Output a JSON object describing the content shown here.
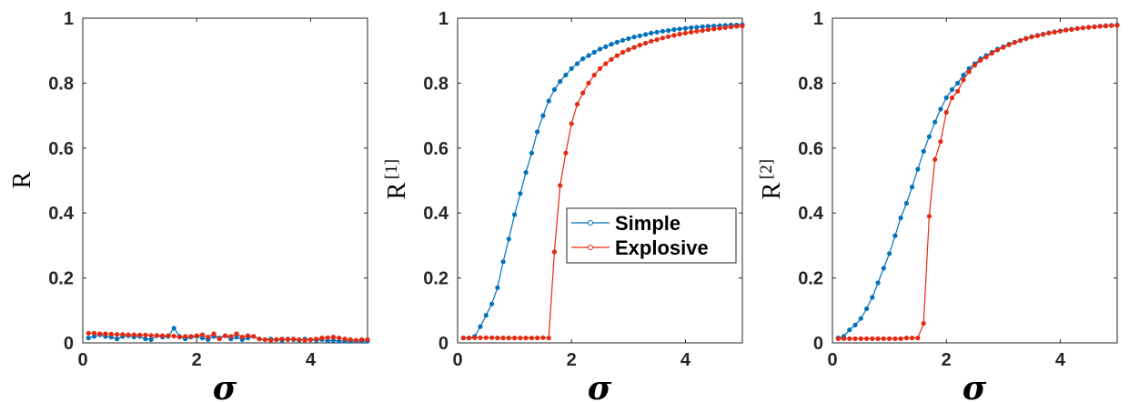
{
  "colors": {
    "simple": "#0072BD",
    "explosive": "#E62A12"
  },
  "legend": {
    "items": [
      "Simple",
      "Explosive"
    ],
    "panel": 1,
    "position": "center-right"
  },
  "chart_data": [
    {
      "type": "line",
      "ylabel": "R",
      "ylabel_sup": "",
      "xlabel": "σ",
      "xlim": [
        0,
        5
      ],
      "ylim": [
        0,
        1
      ],
      "xticks": [
        "0",
        "2",
        "4"
      ],
      "yticks": [
        "0",
        "0.2",
        "0.4",
        "0.6",
        "0.8",
        "1"
      ],
      "x": [
        0.1,
        0.2,
        0.3,
        0.4,
        0.5,
        0.6,
        0.7,
        0.8,
        0.9,
        1.0,
        1.1,
        1.2,
        1.3,
        1.4,
        1.5,
        1.6,
        1.7,
        1.8,
        1.9,
        2.0,
        2.1,
        2.2,
        2.3,
        2.4,
        2.5,
        2.6,
        2.7,
        2.8,
        2.9,
        3.0,
        3.1,
        3.2,
        3.3,
        3.4,
        3.5,
        3.6,
        3.7,
        3.8,
        3.9,
        4.0,
        4.1,
        4.2,
        4.3,
        4.4,
        4.5,
        4.6,
        4.7,
        4.8,
        4.9,
        5.0
      ],
      "series": [
        {
          "name": "Simple",
          "values": [
            0.015,
            0.02,
            0.025,
            0.02,
            0.018,
            0.012,
            0.02,
            0.022,
            0.018,
            0.02,
            0.012,
            0.01,
            0.022,
            0.018,
            0.02,
            0.045,
            0.02,
            0.012,
            0.018,
            0.02,
            0.015,
            0.01,
            0.02,
            0.015,
            0.022,
            0.012,
            0.018,
            0.01,
            0.015,
            0.02,
            0.012,
            0.01,
            0.012,
            0.01,
            0.008,
            0.012,
            0.01,
            0.008,
            0.012,
            0.01,
            0.008,
            0.01,
            0.006,
            0.008,
            0.005,
            0.006,
            0.005,
            0.006,
            0.005,
            0.005
          ]
        },
        {
          "name": "Explosive",
          "values": [
            0.03,
            0.03,
            0.028,
            0.028,
            0.027,
            0.026,
            0.026,
            0.025,
            0.025,
            0.024,
            0.024,
            0.023,
            0.023,
            0.022,
            0.022,
            0.021,
            0.018,
            0.02,
            0.02,
            0.022,
            0.025,
            0.018,
            0.028,
            0.012,
            0.022,
            0.02,
            0.028,
            0.018,
            0.022,
            0.02,
            0.012,
            0.01,
            0.008,
            0.01,
            0.012,
            0.01,
            0.012,
            0.01,
            0.008,
            0.01,
            0.012,
            0.015,
            0.016,
            0.018,
            0.015,
            0.012,
            0.01,
            0.008,
            0.01,
            0.01
          ]
        }
      ]
    },
    {
      "type": "line",
      "ylabel": "R",
      "ylabel_sup": "[1]",
      "xlabel": "σ",
      "xlim": [
        0,
        5
      ],
      "ylim": [
        0,
        1
      ],
      "xticks": [
        "0",
        "2",
        "4"
      ],
      "yticks": [
        "0",
        "0.2",
        "0.4",
        "0.6",
        "0.8",
        "1"
      ],
      "x": [
        0.1,
        0.2,
        0.3,
        0.4,
        0.5,
        0.6,
        0.7,
        0.8,
        0.9,
        1.0,
        1.1,
        1.2,
        1.3,
        1.4,
        1.5,
        1.6,
        1.7,
        1.8,
        1.9,
        2.0,
        2.1,
        2.2,
        2.3,
        2.4,
        2.5,
        2.6,
        2.7,
        2.8,
        2.9,
        3.0,
        3.1,
        3.2,
        3.3,
        3.4,
        3.5,
        3.6,
        3.7,
        3.8,
        3.9,
        4.0,
        4.1,
        4.2,
        4.3,
        4.4,
        4.5,
        4.6,
        4.7,
        4.8,
        4.9,
        5.0
      ],
      "series": [
        {
          "name": "Simple",
          "values": [
            0.015,
            0.015,
            0.02,
            0.05,
            0.085,
            0.12,
            0.17,
            0.25,
            0.32,
            0.395,
            0.46,
            0.525,
            0.585,
            0.65,
            0.7,
            0.745,
            0.78,
            0.805,
            0.825,
            0.845,
            0.86,
            0.875,
            0.885,
            0.895,
            0.905,
            0.912,
            0.92,
            0.926,
            0.932,
            0.937,
            0.942,
            0.946,
            0.95,
            0.954,
            0.957,
            0.96,
            0.962,
            0.965,
            0.967,
            0.969,
            0.971,
            0.972,
            0.974,
            0.975,
            0.976,
            0.977,
            0.978,
            0.979,
            0.979,
            0.98
          ]
        },
        {
          "name": "Explosive",
          "values": [
            0.015,
            0.015,
            0.016,
            0.016,
            0.016,
            0.016,
            0.015,
            0.015,
            0.015,
            0.015,
            0.015,
            0.015,
            0.015,
            0.015,
            0.016,
            0.015,
            0.28,
            0.485,
            0.585,
            0.675,
            0.735,
            0.77,
            0.8,
            0.825,
            0.845,
            0.86,
            0.873,
            0.885,
            0.895,
            0.903,
            0.91,
            0.917,
            0.923,
            0.929,
            0.934,
            0.939,
            0.943,
            0.947,
            0.951,
            0.954,
            0.957,
            0.96,
            0.962,
            0.965,
            0.967,
            0.969,
            0.971,
            0.973,
            0.975,
            0.976
          ]
        }
      ]
    },
    {
      "type": "line",
      "ylabel": "R",
      "ylabel_sup": "[2]",
      "xlabel": "σ",
      "xlim": [
        0,
        5
      ],
      "ylim": [
        0,
        1
      ],
      "xticks": [
        "0",
        "2",
        "4"
      ],
      "yticks": [
        "0",
        "0.2",
        "0.4",
        "0.6",
        "0.8",
        "1"
      ],
      "x": [
        0.1,
        0.2,
        0.3,
        0.4,
        0.5,
        0.6,
        0.7,
        0.8,
        0.9,
        1.0,
        1.1,
        1.2,
        1.3,
        1.4,
        1.5,
        1.6,
        1.7,
        1.8,
        1.9,
        2.0,
        2.1,
        2.2,
        2.3,
        2.4,
        2.5,
        2.6,
        2.7,
        2.8,
        2.9,
        3.0,
        3.1,
        3.2,
        3.3,
        3.4,
        3.5,
        3.6,
        3.7,
        3.8,
        3.9,
        4.0,
        4.1,
        4.2,
        4.3,
        4.4,
        4.5,
        4.6,
        4.7,
        4.8,
        4.9,
        5.0
      ],
      "series": [
        {
          "name": "Simple",
          "values": [
            0.015,
            0.02,
            0.04,
            0.055,
            0.075,
            0.105,
            0.14,
            0.185,
            0.23,
            0.275,
            0.33,
            0.385,
            0.43,
            0.48,
            0.535,
            0.59,
            0.635,
            0.68,
            0.72,
            0.755,
            0.78,
            0.8,
            0.825,
            0.845,
            0.86,
            0.875,
            0.885,
            0.895,
            0.905,
            0.912,
            0.92,
            0.926,
            0.932,
            0.938,
            0.943,
            0.947,
            0.951,
            0.955,
            0.958,
            0.961,
            0.964,
            0.966,
            0.968,
            0.97,
            0.972,
            0.974,
            0.975,
            0.977,
            0.978,
            0.979
          ]
        },
        {
          "name": "Explosive",
          "values": [
            0.013,
            0.013,
            0.013,
            0.013,
            0.013,
            0.013,
            0.013,
            0.013,
            0.013,
            0.013,
            0.013,
            0.013,
            0.015,
            0.015,
            0.015,
            0.06,
            0.39,
            0.565,
            0.62,
            0.71,
            0.755,
            0.775,
            0.81,
            0.835,
            0.855,
            0.87,
            0.88,
            0.892,
            0.902,
            0.91,
            0.918,
            0.925,
            0.931,
            0.937,
            0.942,
            0.946,
            0.95,
            0.954,
            0.957,
            0.96,
            0.963,
            0.965,
            0.968,
            0.97,
            0.972,
            0.973,
            0.975,
            0.976,
            0.977,
            0.978
          ]
        }
      ]
    }
  ]
}
